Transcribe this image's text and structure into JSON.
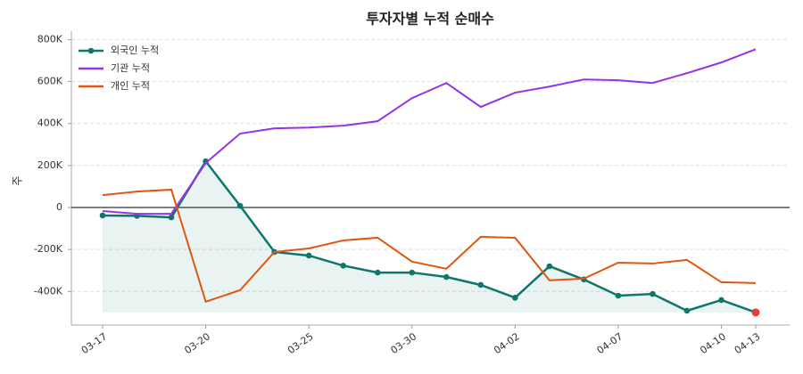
{
  "chart_data": {
    "type": "line",
    "title": "투자자별 누적 순매수",
    "y_label": "주",
    "categories": [
      "03-17",
      null,
      null,
      "03-20",
      null,
      null,
      "03-25",
      null,
      null,
      "03-30",
      null,
      null,
      "04-02",
      null,
      null,
      "04-07",
      null,
      null,
      "04-10",
      "04-13"
    ],
    "series": [
      {
        "name": "외국인 누적",
        "color": "#0f766e",
        "markers": true,
        "fill": true,
        "highlight_last_color": "#e53e3e",
        "values": [
          -38000,
          -40000,
          -47000,
          220000,
          8000,
          -212000,
          -229000,
          -277000,
          -310000,
          -310000,
          -331000,
          -369000,
          -430000,
          -280000,
          -343000,
          -420000,
          -412000,
          -492000,
          -441000,
          -500000
        ]
      },
      {
        "name": "기관 누적",
        "color": "#9333ea",
        "values": [
          -17000,
          -30000,
          -30000,
          212000,
          352000,
          377000,
          381000,
          390000,
          411000,
          521000,
          593000,
          479000,
          547000,
          576000,
          610000,
          606000,
          593000,
          640000,
          691000,
          754000
        ]
      },
      {
        "name": "개인 누적",
        "color": "#e0560e",
        "values": [
          59000,
          76000,
          85000,
          -449000,
          -394000,
          -212000,
          -195000,
          -157000,
          -144000,
          -258000,
          -292000,
          -140000,
          -144000,
          -347000,
          -339000,
          -263000,
          -267000,
          -250000,
          -356000,
          -360000
        ]
      }
    ],
    "ylim": [
      -560000,
      840000
    ],
    "yticks": [
      {
        "value": -400000,
        "label": "-400K"
      },
      {
        "value": -200000,
        "label": "-200K"
      },
      0,
      {
        "value": 200000,
        "label": "200K"
      },
      {
        "value": 400000,
        "label": "400K"
      },
      {
        "value": 600000,
        "label": "600K"
      },
      {
        "value": 800000,
        "label": "800K"
      }
    ],
    "grid": true,
    "zero_line": true,
    "legend": "upper-left"
  }
}
